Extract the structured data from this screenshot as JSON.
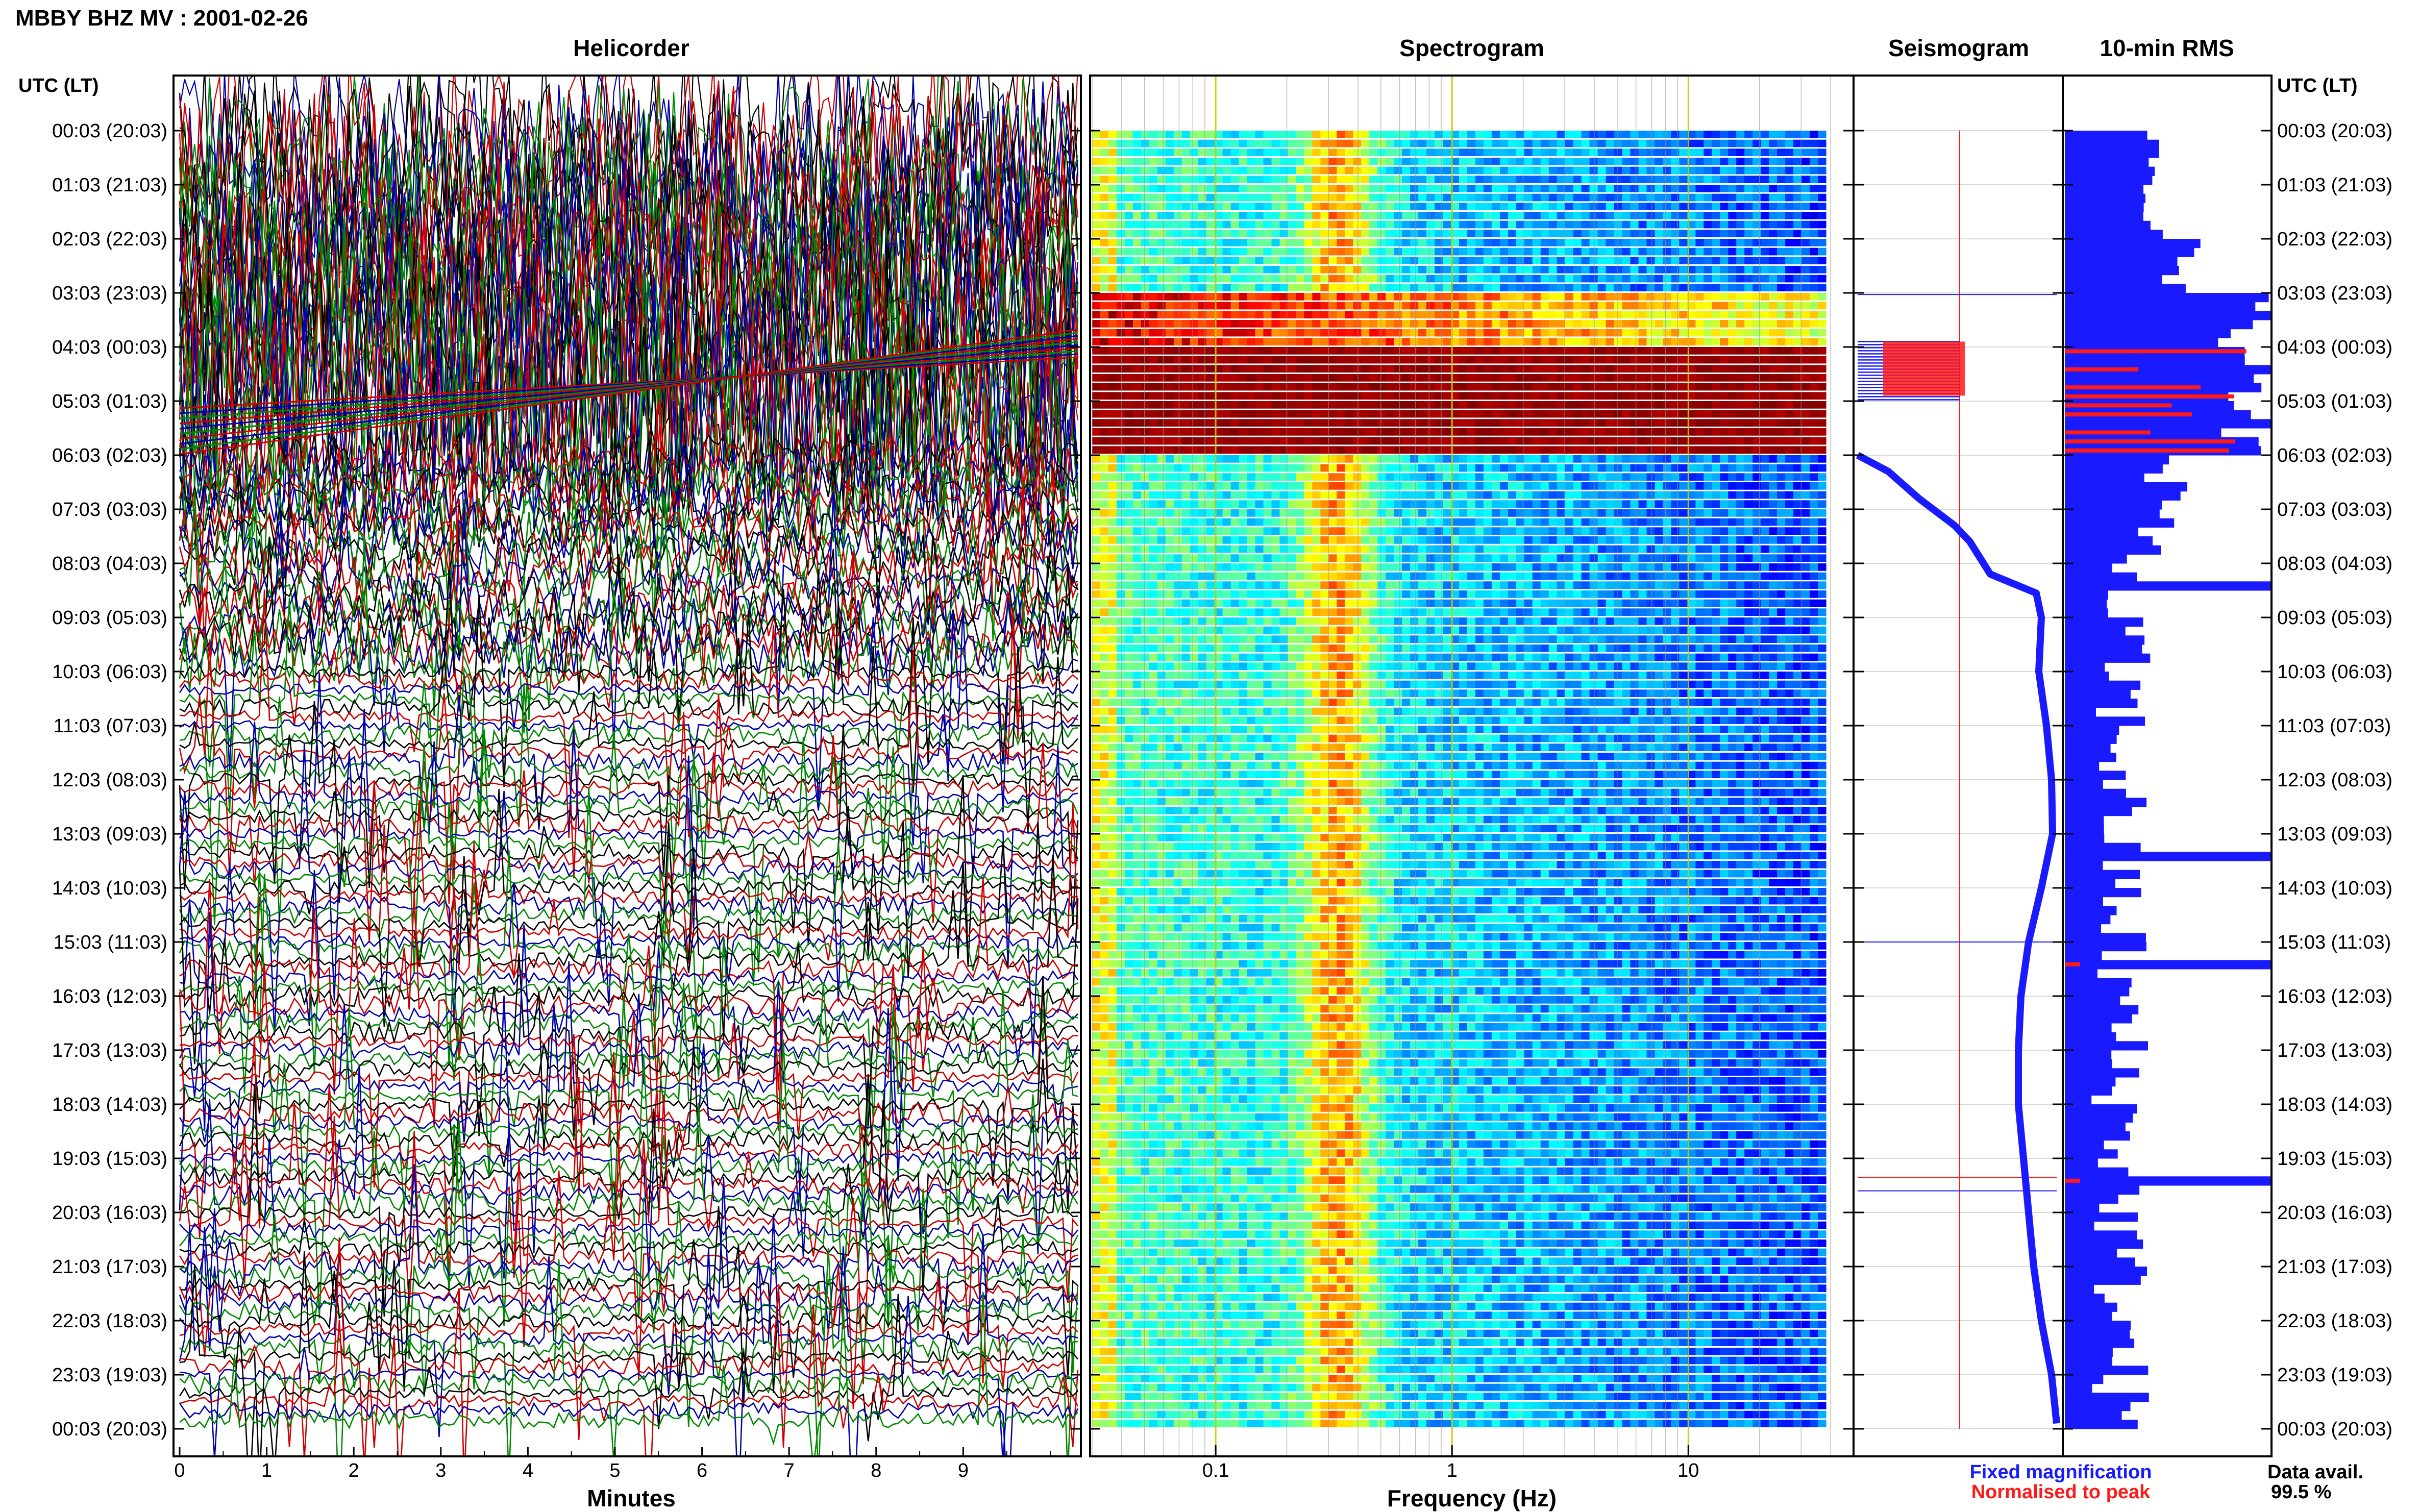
{
  "title": "MBBY BHZ MV : 2001-02-26",
  "panels": {
    "helicorder": "Helicorder",
    "spectrogram": "Spectrogram",
    "seismogram": "Seismogram",
    "rms": "10-min RMS"
  },
  "time_axis_label": "UTC (LT)",
  "time_ticks": [
    "00:03 (20:03)",
    "01:03 (21:03)",
    "02:03 (22:03)",
    "03:03 (23:03)",
    "04:03 (00:03)",
    "05:03 (01:03)",
    "06:03 (02:03)",
    "07:03 (03:03)",
    "08:03 (04:03)",
    "09:03 (05:03)",
    "10:03 (06:03)",
    "11:03 (07:03)",
    "12:03 (08:03)",
    "13:03 (09:03)",
    "14:03 (10:03)",
    "15:03 (11:03)",
    "16:03 (12:03)",
    "17:03 (13:03)",
    "18:03 (14:03)",
    "19:03 (15:03)",
    "20:03 (16:03)",
    "21:03 (17:03)",
    "22:03 (18:03)",
    "23:03 (19:03)",
    "00:03 (20:03)"
  ],
  "legend": {
    "fixed": "Fixed magnification",
    "normalised": "Normalised to peak",
    "fixed_color": "#1a1aff",
    "normalised_color": "#ff1a1a"
  },
  "availability": {
    "label": "Data avail.",
    "value": "99.5 %"
  },
  "chart_data": [
    {
      "type": "line",
      "name": "helicorder",
      "title": "Helicorder",
      "xlabel": "Minutes",
      "x_ticks": [
        "0",
        "1",
        "2",
        "3",
        "4",
        "5",
        "6",
        "7",
        "8",
        "9"
      ],
      "xlim": [
        0,
        10
      ],
      "trace_colors": [
        "#000000",
        "#cc0000",
        "#0000aa",
        "#008800"
      ],
      "rows_per_hour": 6,
      "hours": 24
    },
    {
      "type": "heatmap",
      "name": "spectrogram",
      "title": "Spectrogram",
      "xlabel": "Frequency (Hz)",
      "x_scale": "log",
      "x_ticks": [
        "0.1",
        "1",
        "10"
      ],
      "x_tick_values": [
        0.1,
        1,
        10
      ],
      "xlim": [
        0.03,
        50
      ],
      "colormap": "jet",
      "high_energy_hours_utc": [
        3,
        4,
        5
      ]
    },
    {
      "type": "line",
      "name": "seismogram",
      "title": "Seismogram",
      "series": [
        {
          "name": "Fixed magnification",
          "color": "#1a1aff"
        },
        {
          "name": "Normalised to peak",
          "color": "#ff1a1a"
        }
      ]
    },
    {
      "type": "bar",
      "name": "10-min RMS",
      "title": "10-min RMS",
      "orientation": "horizontal",
      "bins_per_hour": 6,
      "hours": 24,
      "saturated_bins_hour_utc": [
        3,
        4,
        5,
        8,
        13,
        15,
        19
      ]
    }
  ],
  "colors": {
    "frame": "#000000",
    "fixed": "#1a1aff",
    "normalised": "#ff1a1a"
  }
}
